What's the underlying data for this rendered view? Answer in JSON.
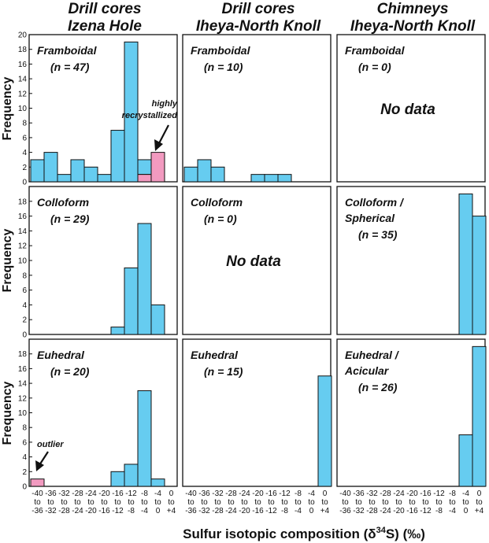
{
  "figure": {
    "column_titles": [
      [
        "Drill cores",
        "Izena Hole"
      ],
      [
        "Drill cores",
        "Iheya-North Knoll"
      ],
      [
        "Chimneys",
        "Iheya-North Knoll"
      ]
    ],
    "ylabel": "Frequency",
    "xlabel_prefix": "Sulfur isotopic composition (δ",
    "xlabel_sup": "34",
    "xlabel_suffix": "S) (‰)",
    "colors": {
      "bar_main": "#66CCF0",
      "bar_highlight": "#F29AC0",
      "bar_edge": "#111111"
    }
  },
  "chart_data": {
    "type": "bar",
    "bins": [
      [
        "-40",
        "to",
        "-36"
      ],
      [
        "-36",
        "to",
        "-32"
      ],
      [
        "-32",
        "to",
        "-28"
      ],
      [
        "-28",
        "to",
        "-24"
      ],
      [
        "-24",
        "to",
        "-20"
      ],
      [
        "-20",
        "to",
        "-16"
      ],
      [
        "-16",
        "to",
        "-12"
      ],
      [
        "-12",
        "to",
        "-8"
      ],
      [
        "-8",
        "to",
        "-4"
      ],
      [
        "-4",
        "to",
        "0"
      ],
      [
        "0",
        "to",
        "+4"
      ]
    ],
    "rows": [
      {
        "ylim": [
          0,
          20
        ],
        "yticks": [
          0,
          2,
          4,
          6,
          8,
          10,
          12,
          14,
          16,
          18,
          20
        ]
      },
      {
        "ylim": [
          0,
          20
        ],
        "yticks": [
          0,
          2,
          4,
          6,
          8,
          10,
          12,
          14,
          16,
          18
        ]
      },
      {
        "ylim": [
          0,
          20
        ],
        "yticks": [
          0,
          2,
          4,
          6,
          8,
          10,
          12,
          14,
          16,
          18
        ]
      }
    ],
    "panels": [
      {
        "id": "izena-framboidal",
        "row": 0,
        "col": 0,
        "label": "Framboidal",
        "n": "(n = 47)",
        "values": [
          3,
          4,
          1,
          3,
          2,
          1,
          7,
          19,
          3,
          4,
          0
        ],
        "highlight": [
          0,
          0,
          0,
          0,
          0,
          0,
          0,
          0,
          1,
          4,
          0
        ],
        "annotation": [
          "highly",
          "recrystallized"
        ]
      },
      {
        "id": "iheya-core-framboidal",
        "row": 0,
        "col": 1,
        "label": "Framboidal",
        "n": "(n = 10)",
        "values": [
          2,
          3,
          2,
          0,
          0,
          1,
          1,
          1,
          0,
          0,
          0
        ]
      },
      {
        "id": "chimney-framboidal",
        "row": 0,
        "col": 2,
        "label": "Framboidal",
        "n": "(n = 0)",
        "values": [
          0,
          0,
          0,
          0,
          0,
          0,
          0,
          0,
          0,
          0,
          0
        ],
        "nodata": "No data"
      },
      {
        "id": "izena-colloform",
        "row": 1,
        "col": 0,
        "label": "Colloform",
        "n": "(n = 29)",
        "values": [
          0,
          0,
          0,
          0,
          0,
          0,
          1,
          9,
          15,
          4,
          0
        ]
      },
      {
        "id": "iheya-core-colloform",
        "row": 1,
        "col": 1,
        "label": "Colloform",
        "n": "(n = 0)",
        "values": [
          0,
          0,
          0,
          0,
          0,
          0,
          0,
          0,
          0,
          0,
          0
        ],
        "nodata": "No data"
      },
      {
        "id": "chimney-colloform",
        "row": 1,
        "col": 2,
        "label": "Colloform /",
        "label2": "Spherical",
        "n": "(n = 35)",
        "values": [
          0,
          0,
          0,
          0,
          0,
          0,
          0,
          0,
          0,
          19,
          16
        ]
      },
      {
        "id": "izena-euhedral",
        "row": 2,
        "col": 0,
        "label": "Euhedral",
        "n": "(n = 20)",
        "values": [
          1,
          0,
          0,
          0,
          0,
          0,
          2,
          3,
          13,
          1,
          0
        ],
        "highlight": [
          1,
          0,
          0,
          0,
          0,
          0,
          0,
          0,
          0,
          0,
          0
        ],
        "annotation": [
          "outlier"
        ]
      },
      {
        "id": "iheya-core-euhedral",
        "row": 2,
        "col": 1,
        "label": "Euhedral",
        "n": "(n = 15)",
        "values": [
          0,
          0,
          0,
          0,
          0,
          0,
          0,
          0,
          0,
          0,
          15
        ]
      },
      {
        "id": "chimney-euhedral",
        "row": 2,
        "col": 2,
        "label": "Euhedral /",
        "label2": "Acicular",
        "n": "(n = 26)",
        "values": [
          0,
          0,
          0,
          0,
          0,
          0,
          0,
          0,
          0,
          7,
          19
        ]
      }
    ]
  }
}
